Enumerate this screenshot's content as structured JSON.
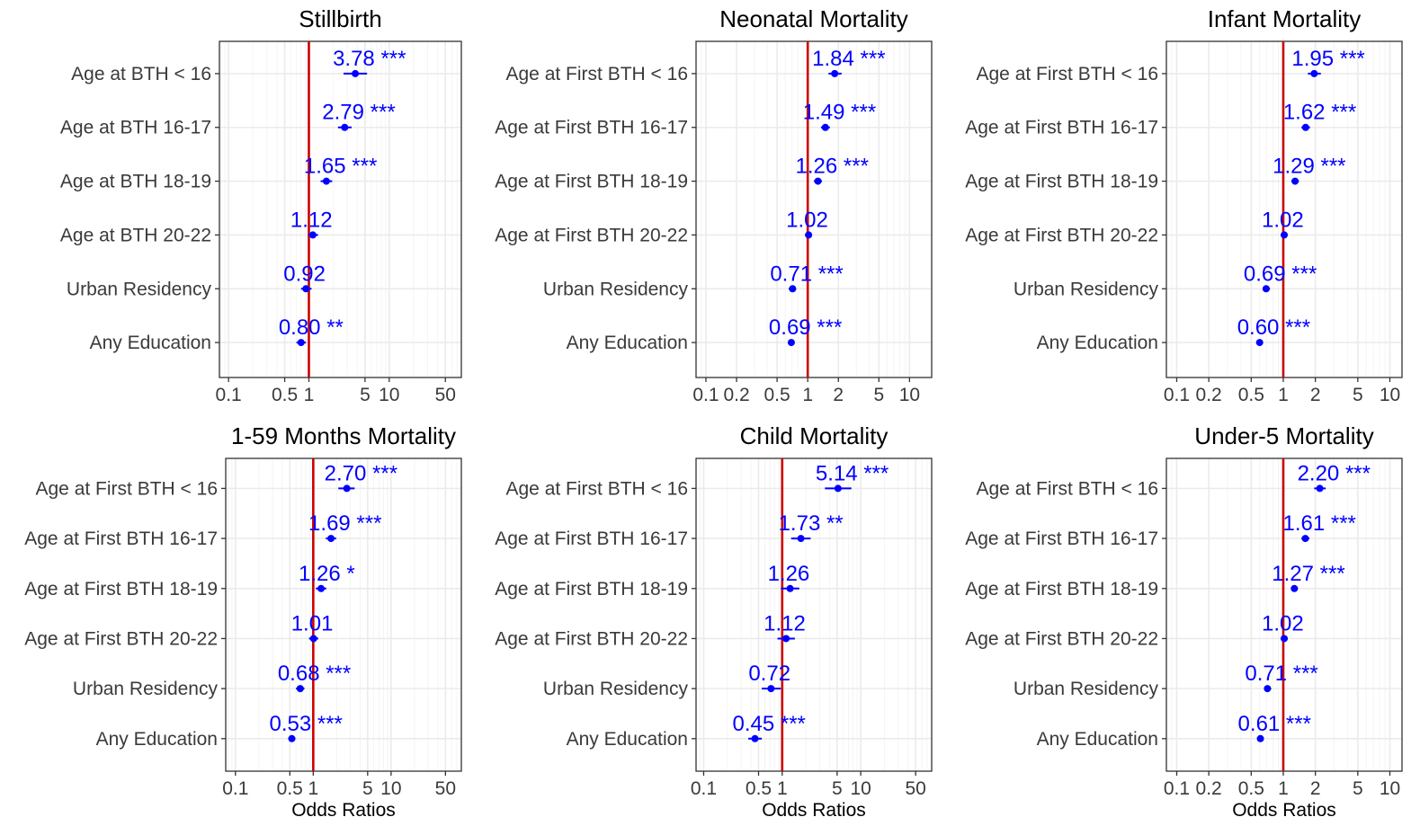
{
  "colors": {
    "estimate": "#0000ff",
    "reference_line": "#cc0000",
    "grid_major": "#ebebeb",
    "grid_minor": "#f4f4f4",
    "panel_border": "#333333"
  },
  "chart_data": [
    {
      "type": "forest",
      "title": "Stillbirth",
      "xlabel": "",
      "x_scale": "log",
      "xlim": [
        0.077,
        79
      ],
      "xticks": [
        "0.1",
        "0.5",
        "1",
        "5",
        "10",
        "50"
      ],
      "reference_line": 1,
      "rows": [
        {
          "label": "Age at BTH < 16",
          "or": 3.78,
          "lo": 2.7,
          "hi": 5.3,
          "text": "3.78 ***"
        },
        {
          "label": "Age at BTH 16-17",
          "or": 2.79,
          "lo": 2.3,
          "hi": 3.4,
          "text": "2.79 ***"
        },
        {
          "label": "Age at  BTH 18-19",
          "or": 1.65,
          "lo": 1.4,
          "hi": 1.95,
          "text": "1.65 ***"
        },
        {
          "label": "Age at BTH 20-22",
          "or": 1.12,
          "lo": 0.98,
          "hi": 1.3,
          "text": "1.12"
        },
        {
          "label": "Urban Residency",
          "or": 0.92,
          "lo": 0.8,
          "hi": 1.08,
          "text": "0.92"
        },
        {
          "label": "Any Education",
          "or": 0.8,
          "lo": 0.7,
          "hi": 0.92,
          "text": "0.80 **"
        }
      ]
    },
    {
      "type": "forest",
      "title": "Neonatal Mortality",
      "xlabel": "",
      "x_scale": "log",
      "xlim": [
        0.08,
        16.5
      ],
      "xticks": [
        "0.1",
        "0.2",
        "0.5",
        "1",
        "2",
        "5",
        "10"
      ],
      "reference_line": 1,
      "rows": [
        {
          "label": "Age at First BTH < 16",
          "or": 1.84,
          "lo": 1.6,
          "hi": 2.15,
          "text": "1.84 ***"
        },
        {
          "label": "Age at First BTH 16-17",
          "or": 1.49,
          "lo": 1.35,
          "hi": 1.65,
          "text": "1.49 ***"
        },
        {
          "label": "Age at First BTH 18-19",
          "or": 1.26,
          "lo": 1.15,
          "hi": 1.38,
          "text": "1.26 ***"
        },
        {
          "label": "Age at First BTH 20-22",
          "or": 1.02,
          "lo": 0.94,
          "hi": 1.1,
          "text": "1.02"
        },
        {
          "label": "Urban Residency",
          "or": 0.71,
          "lo": 0.65,
          "hi": 0.77,
          "text": "0.71 ***"
        },
        {
          "label": "Any Education",
          "or": 0.69,
          "lo": 0.64,
          "hi": 0.74,
          "text": "0.69 ***"
        }
      ]
    },
    {
      "type": "forest",
      "title": "Infant Mortality",
      "xlabel": "",
      "x_scale": "log",
      "xlim": [
        0.08,
        13
      ],
      "xticks": [
        "0.1",
        "0.2",
        "0.5",
        "1",
        "2",
        "5",
        "10"
      ],
      "reference_line": 1,
      "rows": [
        {
          "label": "Age at First BTH < 16",
          "or": 1.95,
          "lo": 1.7,
          "hi": 2.25,
          "text": "1.95 ***"
        },
        {
          "label": "Age at First BTH 16-17",
          "or": 1.62,
          "lo": 1.48,
          "hi": 1.78,
          "text": "1.62 ***"
        },
        {
          "label": "Age at First BTH 18-19",
          "or": 1.29,
          "lo": 1.19,
          "hi": 1.4,
          "text": "1.29 ***"
        },
        {
          "label": "Age at First BTH 20-22",
          "or": 1.02,
          "lo": 0.95,
          "hi": 1.1,
          "text": "1.02"
        },
        {
          "label": "Urban Residency",
          "or": 0.69,
          "lo": 0.64,
          "hi": 0.75,
          "text": "0.69 ***"
        },
        {
          "label": "Any Education",
          "or": 0.6,
          "lo": 0.56,
          "hi": 0.64,
          "text": "0.60 ***"
        }
      ]
    },
    {
      "type": "forest",
      "title": "1-59 Months Mortality",
      "xlabel": "Odds Ratios",
      "x_scale": "log",
      "xlim": [
        0.075,
        80
      ],
      "xticks": [
        "0.1",
        "0.5",
        "1",
        "5",
        "10",
        "50"
      ],
      "reference_line": 1,
      "rows": [
        {
          "label": "Age at First BTH < 16",
          "or": 2.7,
          "lo": 2.1,
          "hi": 3.4,
          "text": "2.70 ***"
        },
        {
          "label": "Age at First BTH 16-17",
          "or": 1.69,
          "lo": 1.45,
          "hi": 1.97,
          "text": "1.69 ***"
        },
        {
          "label": "Age at First BTH 18-19",
          "or": 1.26,
          "lo": 1.08,
          "hi": 1.47,
          "text": "1.26 *"
        },
        {
          "label": "Age at First BTH 20-22",
          "or": 1.01,
          "lo": 0.88,
          "hi": 1.16,
          "text": "1.01"
        },
        {
          "label": "Urban Residency",
          "or": 0.68,
          "lo": 0.6,
          "hi": 0.77,
          "text": "0.68 ***"
        },
        {
          "label": "Any Education",
          "or": 0.53,
          "lo": 0.48,
          "hi": 0.59,
          "text": "0.53 ***"
        }
      ]
    },
    {
      "type": "forest",
      "title": "Child Mortality",
      "xlabel": "Odds Ratios",
      "x_scale": "log",
      "xlim": [
        0.08,
        80
      ],
      "xticks": [
        "0.1",
        "0.5",
        "1",
        "5",
        "10",
        "50"
      ],
      "reference_line": 1,
      "rows": [
        {
          "label": "Age at First BTH < 16",
          "or": 5.14,
          "lo": 3.5,
          "hi": 7.6,
          "text": "5.14 ***"
        },
        {
          "label": "Age at First BTH 16-17",
          "or": 1.73,
          "lo": 1.3,
          "hi": 2.3,
          "text": "1.73 **"
        },
        {
          "label": "Age at First BTH 18-19",
          "or": 1.26,
          "lo": 0.96,
          "hi": 1.65,
          "text": "1.26"
        },
        {
          "label": "Age at First BTH 20-22",
          "or": 1.12,
          "lo": 0.87,
          "hi": 1.45,
          "text": "1.12"
        },
        {
          "label": "Urban Residency",
          "or": 0.72,
          "lo": 0.55,
          "hi": 0.96,
          "text": "0.72"
        },
        {
          "label": "Any Education",
          "or": 0.45,
          "lo": 0.37,
          "hi": 0.55,
          "text": "0.45 ***"
        }
      ]
    },
    {
      "type": "forest",
      "title": "Under-5 Mortality",
      "xlabel": "Odds Ratios",
      "x_scale": "log",
      "xlim": [
        0.08,
        13
      ],
      "xticks": [
        "0.1",
        "0.2",
        "0.5",
        "1",
        "2",
        "5",
        "10"
      ],
      "reference_line": 1,
      "rows": [
        {
          "label": "Age at First BTH < 16",
          "or": 2.2,
          "lo": 1.95,
          "hi": 2.5,
          "text": "2.20 ***"
        },
        {
          "label": "Age at First BTH 16-17",
          "or": 1.61,
          "lo": 1.48,
          "hi": 1.76,
          "text": "1.61 ***"
        },
        {
          "label": "Age at First BTH 18-19",
          "or": 1.27,
          "lo": 1.18,
          "hi": 1.37,
          "text": "1.27 ***"
        },
        {
          "label": "Age at First BTH 20-22",
          "or": 1.02,
          "lo": 0.95,
          "hi": 1.1,
          "text": "1.02"
        },
        {
          "label": "Urban Residency",
          "or": 0.71,
          "lo": 0.66,
          "hi": 0.77,
          "text": "0.71 ***"
        },
        {
          "label": "Any Education",
          "or": 0.61,
          "lo": 0.57,
          "hi": 0.65,
          "text": "0.61 ***"
        }
      ]
    }
  ]
}
